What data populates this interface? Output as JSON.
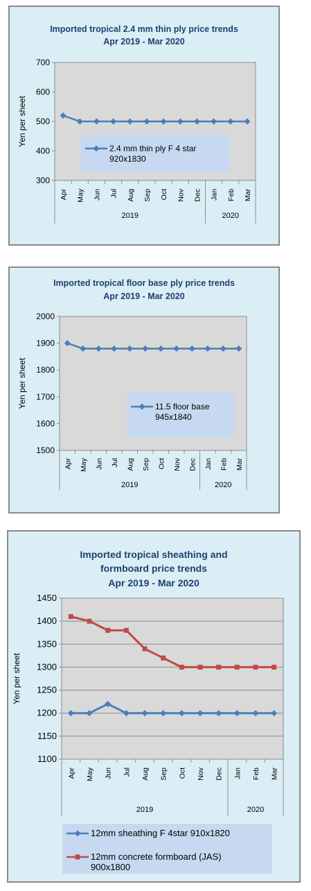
{
  "chart_data": [
    {
      "type": "line",
      "title": "Imported tropical 2.4 mm thin ply price trends",
      "subtitle": "Apr 2019 - Mar 2020",
      "ylabel": "Yen per sheet",
      "ylim": [
        300,
        700
      ],
      "yticks": [
        300,
        400,
        500,
        600,
        700
      ],
      "categories": [
        "Apr",
        "May",
        "Jun",
        "Jul",
        "Aug",
        "Sep",
        "Oct",
        "Nov",
        "Dec",
        "Jan",
        "Feb",
        "Mar"
      ],
      "years": [
        {
          "label": "2019",
          "span": 9
        },
        {
          "label": "2020",
          "span": 3
        }
      ],
      "grid": false,
      "legend_position": "center",
      "series": [
        {
          "name": "2.4 mm thin ply F 4 star 920x1830",
          "color": "#4a7ebb",
          "marker": "diamond",
          "values": [
            520,
            500,
            500,
            500,
            500,
            500,
            500,
            500,
            500,
            500,
            500,
            500
          ]
        }
      ]
    },
    {
      "type": "line",
      "title": "Imported tropical floor base ply price trends",
      "subtitle": "Apr 2019 - Mar 2020",
      "ylabel": "Yen per sheet",
      "ylim": [
        1500,
        2000
      ],
      "yticks": [
        1500,
        1600,
        1700,
        1800,
        1900,
        2000
      ],
      "categories": [
        "Apr",
        "May",
        "Jun",
        "Jul",
        "Aug",
        "Sep",
        "Oct",
        "Nov",
        "Dec",
        "Jan",
        "Feb",
        "Mar"
      ],
      "years": [
        {
          "label": "2019",
          "span": 9
        },
        {
          "label": "2020",
          "span": 3
        }
      ],
      "grid": false,
      "legend_position": "center-right",
      "series": [
        {
          "name": "11.5 floor base 945x1840",
          "color": "#4a7ebb",
          "marker": "diamond",
          "values": [
            1900,
            1880,
            1880,
            1880,
            1880,
            1880,
            1880,
            1880,
            1880,
            1880,
            1880,
            1880
          ]
        }
      ]
    },
    {
      "type": "line",
      "title": "Imported tropical sheathing and formboard price trends",
      "subtitle": "Apr 2019 -  Mar 2020",
      "ylabel": "Yen per sheet",
      "ylim": [
        1100,
        1450
      ],
      "yticks": [
        1100,
        1150,
        1200,
        1250,
        1300,
        1350,
        1400,
        1450
      ],
      "categories": [
        "Apr",
        "May",
        "Jun",
        "Jul",
        "Aug",
        "Sep",
        "Oct",
        "Nov",
        "Dec",
        "Jan",
        "Feb",
        "Mar"
      ],
      "years": [
        {
          "label": "2019",
          "span": 9
        },
        {
          "label": "2020",
          "span": 3
        }
      ],
      "grid": true,
      "legend_position": "bottom",
      "series": [
        {
          "name": "12mm sheathing F 4star 910x1820",
          "color": "#4a7ebb",
          "marker": "diamond",
          "values": [
            1200,
            1200,
            1220,
            1200,
            1200,
            1200,
            1200,
            1200,
            1200,
            1200,
            1200,
            1200
          ]
        },
        {
          "name": "12mm concrete formboard (JAS) 900x1800",
          "color": "#be4b48",
          "marker": "square",
          "values": [
            1410,
            1400,
            1380,
            1380,
            1340,
            1320,
            1300,
            1300,
            1300,
            1300,
            1300,
            1300
          ]
        }
      ]
    }
  ]
}
